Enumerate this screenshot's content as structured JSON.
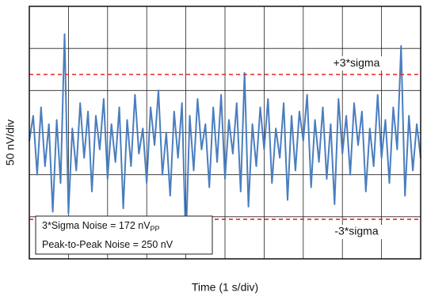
{
  "chart_data": {
    "type": "line",
    "y_axis_label": "50 nV/div",
    "x_axis_label": "Time (1 s/div)",
    "xlim": [
      0,
      10
    ],
    "xticks": [
      0,
      1,
      2,
      3,
      4,
      5,
      6,
      7,
      8,
      9,
      10
    ],
    "ylim": [
      -150,
      150
    ],
    "yticks": [
      -150,
      -100,
      -50,
      0,
      50,
      100,
      150
    ],
    "grid": true,
    "x": [
      0,
      0.1,
      0.2,
      0.3,
      0.4,
      0.5,
      0.6,
      0.7,
      0.8,
      0.9,
      1,
      1.1,
      1.2,
      1.3,
      1.4,
      1.5,
      1.6,
      1.7,
      1.8,
      1.9,
      2,
      2.1,
      2.2,
      2.3,
      2.4,
      2.5,
      2.6,
      2.7,
      2.8,
      2.9,
      3,
      3.1,
      3.2,
      3.3,
      3.4,
      3.5,
      3.6,
      3.7,
      3.8,
      3.9,
      4,
      4.1,
      4.2,
      4.3,
      4.4,
      4.5,
      4.6,
      4.7,
      4.8,
      4.9,
      5,
      5.1,
      5.2,
      5.3,
      5.4,
      5.5,
      5.6,
      5.7,
      5.8,
      5.9,
      6,
      6.1,
      6.2,
      6.3,
      6.4,
      6.5,
      6.6,
      6.7,
      6.8,
      6.9,
      7,
      7.1,
      7.2,
      7.3,
      7.4,
      7.5,
      7.6,
      7.7,
      7.8,
      7.9,
      8,
      8.1,
      8.2,
      8.3,
      8.4,
      8.5,
      8.6,
      8.7,
      8.8,
      8.9,
      9,
      9.1,
      9.2,
      9.3,
      9.4,
      9.5,
      9.6,
      9.7,
      9.8,
      9.9,
      10
    ],
    "series": [
      {
        "color": "#4a7ebf",
        "values": [
          -10,
          20,
          -50,
          30,
          -40,
          10,
          -94,
          15,
          -60,
          117,
          -96,
          5,
          -45,
          35,
          -30,
          25,
          -70,
          20,
          -20,
          40,
          -55,
          10,
          -35,
          30,
          -90,
          15,
          -40,
          45,
          -25,
          5,
          -60,
          30,
          -15,
          50,
          -50,
          0,
          -75,
          25,
          -30,
          35,
          -133,
          20,
          -45,
          40,
          -20,
          10,
          -65,
          30,
          -35,
          45,
          -55,
          15,
          -25,
          35,
          -70,
          71,
          -88,
          10,
          -40,
          30,
          -20,
          40,
          -60,
          5,
          -30,
          35,
          -80,
          20,
          -45,
          25,
          -10,
          45,
          -65,
          15,
          -35,
          30,
          -55,
          10,
          -85,
          40,
          -25,
          20,
          -50,
          35,
          -15,
          25,
          -70,
          5,
          -40,
          45,
          -30,
          15,
          -60,
          30,
          -20,
          103,
          -75,
          20,
          -45,
          10,
          -30
        ]
      }
    ],
    "reference_lines": [
      {
        "value": 69,
        "label": "+3*sigma"
      },
      {
        "value": -103,
        "label": "-3*sigma"
      }
    ],
    "reference_color": "#e8262b",
    "annotations": [
      {
        "text": "3*Sigma Noise = 172 nV",
        "subscript": "PP"
      },
      {
        "text": "Peak-to-Peak Noise = 250 nV"
      }
    ]
  }
}
